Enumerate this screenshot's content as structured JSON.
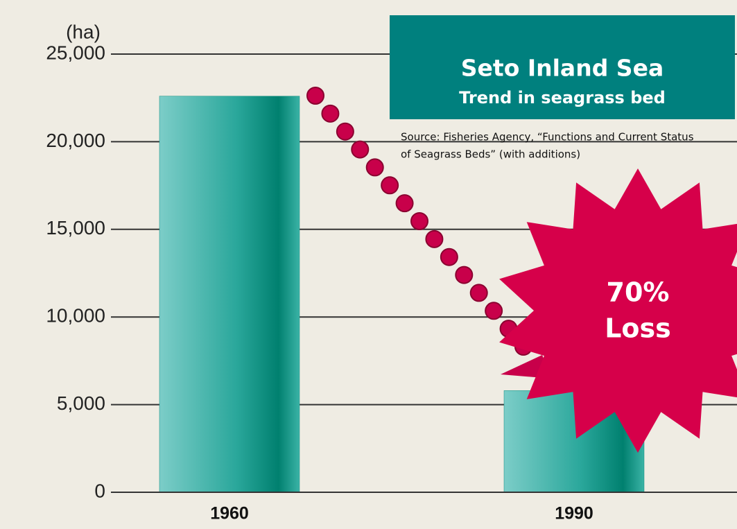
{
  "chart_data": {
    "type": "bar",
    "title": "Seto Inland Sea",
    "subtitle": "Trend in seagrass bed",
    "source_lines": [
      "Source: Fisheries Agency, “Functions and Current Status",
      "of Seagrass Beds” (with additions)"
    ],
    "y_label": "(ha)",
    "annotation_lines": [
      "70%",
      "Loss"
    ],
    "categories": [
      "1960",
      "1990"
    ],
    "values": [
      22600,
      5800
    ],
    "color": "#0a8c7e",
    "ylim": [
      0,
      25000
    ],
    "yticks": [
      0,
      {
        "value": 5000,
        "label": "5,000"
      },
      {
        "value": 10000,
        "label": "10,000"
      },
      {
        "value": 15000,
        "label": "15,000"
      },
      {
        "value": 20000,
        "label": "20,000"
      },
      {
        "value": 25000,
        "label": "25,000"
      }
    ],
    "grid": true
  }
}
